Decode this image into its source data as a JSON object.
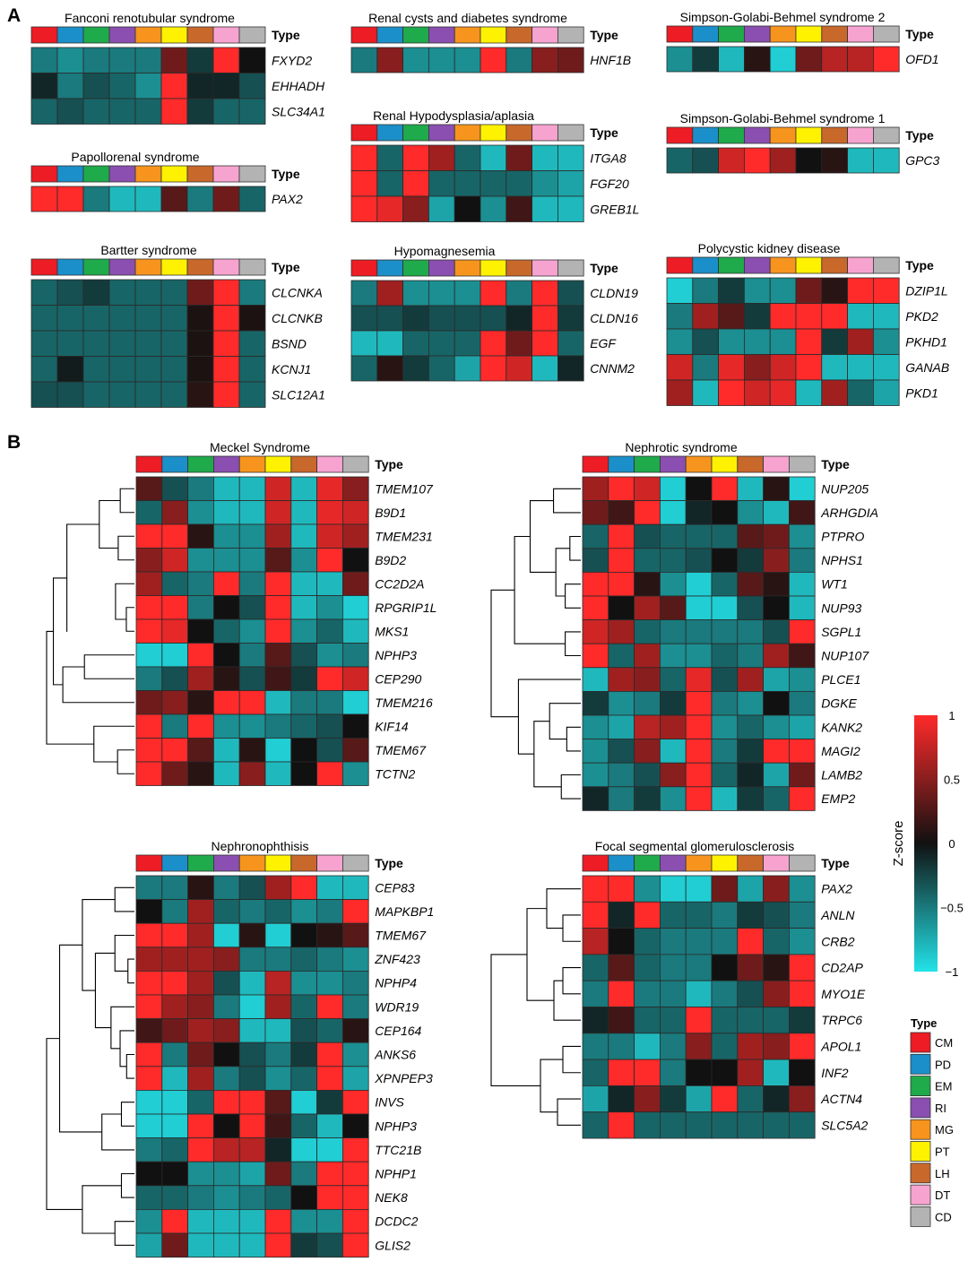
{
  "figure": {
    "panel_a_label": "A",
    "panel_b_label": "B",
    "type_label": "Type",
    "colorbar_title": "Z-score",
    "legend_title": "Type",
    "colormap": {
      "low": "#22e3e8",
      "mid": "#111111",
      "high": "#ff2a2a"
    }
  },
  "cell_types": [
    {
      "name": "CM",
      "color": "#ee1c24"
    },
    {
      "name": "PD",
      "color": "#1b8fc9"
    },
    {
      "name": "EM",
      "color": "#1faa4b"
    },
    {
      "name": "RI",
      "color": "#8a4fb0"
    },
    {
      "name": "MG",
      "color": "#f7941d"
    },
    {
      "name": "PT",
      "color": "#fff200"
    },
    {
      "name": "LH",
      "color": "#c9682b"
    },
    {
      "name": "DT",
      "color": "#f7a3d0"
    },
    {
      "name": "CD",
      "color": "#b3b3b3"
    }
  ],
  "chart_data": {
    "type": "heatmap",
    "value_range": [
      -1,
      1
    ],
    "colorbar_ticks": [
      1,
      0.5,
      0,
      -0.5,
      -1
    ],
    "colorbar_tick_labels": [
      "1",
      "0.5",
      "0",
      "−0.5",
      "−1"
    ],
    "columns": [
      "CM",
      "PD",
      "EM",
      "RI",
      "MG",
      "PT",
      "LH",
      "DT",
      "CD"
    ],
    "heatmaps": [
      {
        "id": "fanconi",
        "title": "Fanconi renotubular syndrome",
        "genes": [
          "FXYD2",
          "EHHADH",
          "SLC34A1"
        ],
        "values": [
          [
            -0.5,
            -0.6,
            -0.5,
            -0.5,
            -0.5,
            0.4,
            -0.2,
            1,
            0
          ],
          [
            -0.1,
            -0.5,
            -0.3,
            -0.4,
            -0.6,
            1,
            -0.1,
            -0.1,
            -0.3
          ],
          [
            -0.4,
            -0.3,
            -0.4,
            -0.4,
            -0.4,
            1,
            -0.2,
            -0.4,
            -0.4
          ]
        ]
      },
      {
        "id": "papillorenal",
        "title": "Papollorenal syndrome",
        "genes": [
          "PAX2"
        ],
        "values": [
          [
            1,
            1,
            -0.5,
            -0.8,
            -0.8,
            0.3,
            -0.5,
            0.4,
            -0.4
          ]
        ]
      },
      {
        "id": "bartter",
        "title": "Bartter syndrome",
        "genes": [
          "CLCNKA",
          "CLCNKB",
          "BSND",
          "KCNJ1",
          "SLC12A1"
        ],
        "values": [
          [
            -0.4,
            -0.3,
            -0.2,
            -0.4,
            -0.4,
            -0.4,
            0.4,
            1,
            -0.5
          ],
          [
            -0.4,
            -0.4,
            -0.4,
            -0.4,
            -0.4,
            -0.4,
            0.05,
            1,
            0.05
          ],
          [
            -0.4,
            -0.4,
            -0.4,
            -0.4,
            -0.4,
            -0.4,
            0.05,
            1,
            -0.4
          ],
          [
            -0.4,
            -0.05,
            -0.4,
            -0.4,
            -0.4,
            -0.4,
            0.05,
            1,
            -0.4
          ],
          [
            -0.3,
            -0.3,
            -0.4,
            -0.4,
            -0.4,
            -0.4,
            0.1,
            1,
            -0.4
          ]
        ]
      },
      {
        "id": "rcad",
        "title": "Renal cysts and diabetes syndrome",
        "genes": [
          "HNF1B"
        ],
        "values": [
          [
            -0.5,
            0.5,
            -0.6,
            -0.6,
            -0.6,
            1,
            -0.5,
            0.5,
            0.4
          ]
        ]
      },
      {
        "id": "hypodysplasia",
        "title": "Renal Hypodysplasia/aplasia",
        "genes": [
          "ITGA8",
          "FGF20",
          "GREB1L"
        ],
        "values": [
          [
            1,
            -0.4,
            1,
            0.6,
            -0.4,
            -0.8,
            0.4,
            -0.8,
            -0.8
          ],
          [
            1,
            -0.4,
            1,
            -0.4,
            -0.4,
            -0.4,
            -0.4,
            -0.6,
            -0.7
          ],
          [
            1,
            0.9,
            0.5,
            -0.7,
            0,
            -0.6,
            0.2,
            -0.8,
            -0.8
          ]
        ]
      },
      {
        "id": "hypomagnesemia",
        "title": "Hypomagnesemia",
        "genes": [
          "CLDN19",
          "CLDN16",
          "EGF",
          "CNNM2"
        ],
        "values": [
          [
            -0.5,
            0.6,
            -0.6,
            -0.6,
            -0.6,
            1,
            -0.5,
            1,
            -0.3
          ],
          [
            -0.3,
            -0.3,
            -0.2,
            -0.3,
            -0.3,
            -0.3,
            -0.1,
            1,
            -0.2
          ],
          [
            -0.8,
            -0.8,
            -0.4,
            -0.4,
            -0.4,
            1,
            0.4,
            1,
            -0.4
          ],
          [
            -0.4,
            0.1,
            -0.2,
            -0.4,
            -0.7,
            1,
            0.8,
            -0.8,
            -0.1
          ]
        ]
      },
      {
        "id": "sgbs2",
        "title": "Simpson-Golabi-Behmel syndrome 2",
        "genes": [
          "OFD1"
        ],
        "values": [
          [
            -0.6,
            -0.2,
            -0.8,
            0.1,
            -0.9,
            0.4,
            0.7,
            0.7,
            1
          ]
        ]
      },
      {
        "id": "sgbs1",
        "title": "Simpson-Golabi-Behmel syndrome 1",
        "genes": [
          "GPC3"
        ],
        "values": [
          [
            -0.4,
            -0.3,
            0.8,
            1,
            0.6,
            0,
            0.1,
            -0.8,
            -0.8
          ]
        ]
      },
      {
        "id": "pkd",
        "title": "Polycystic kidney disease",
        "genes": [
          "DZIP1L",
          "PKD2",
          "PKHD1",
          "GANAB",
          "PKD1"
        ],
        "values": [
          [
            -0.9,
            -0.5,
            -0.2,
            -0.6,
            -0.6,
            0.4,
            0.1,
            1,
            1
          ],
          [
            -0.5,
            0.6,
            0.3,
            -0.2,
            1,
            1,
            1,
            -0.8,
            -0.8
          ],
          [
            -0.6,
            -0.3,
            -0.6,
            -0.6,
            -0.6,
            1,
            -0.2,
            0.6,
            -0.6
          ],
          [
            0.8,
            -0.5,
            0.9,
            0.5,
            0.8,
            1,
            -0.8,
            -0.8,
            -0.8
          ],
          [
            0.6,
            -0.8,
            1,
            0.8,
            0.9,
            -0.8,
            0.6,
            -0.4,
            -0.7
          ]
        ]
      },
      {
        "id": "meckel",
        "title": "Meckel Syndrome",
        "genes": [
          "TMEM107",
          "B9D1",
          "TMEM231",
          "B9D2",
          "CC2D2A",
          "RPGRIP1L",
          "MKS1",
          "NPHP3",
          "CEP290",
          "TMEM216",
          "KIF14",
          "TMEM67",
          "TCTN2"
        ],
        "values": [
          [
            0.3,
            -0.3,
            -0.5,
            -0.8,
            -0.8,
            0.8,
            -0.8,
            0.9,
            0.5
          ],
          [
            -0.4,
            0.5,
            -0.6,
            -0.8,
            -0.8,
            0.8,
            -0.8,
            0.9,
            0.8
          ],
          [
            1,
            1,
            0.1,
            -0.6,
            -0.6,
            0.6,
            -0.8,
            0.8,
            0.6
          ],
          [
            0.5,
            0.8,
            -0.6,
            -0.6,
            -0.6,
            0.3,
            -0.6,
            1,
            0
          ],
          [
            0.6,
            -0.4,
            -0.5,
            1,
            -0.5,
            1,
            -0.8,
            -0.8,
            0.4
          ],
          [
            1,
            1,
            -0.5,
            0,
            -0.3,
            1,
            -0.8,
            -0.6,
            -0.9
          ],
          [
            1,
            0.9,
            0,
            -0.4,
            -0.6,
            1,
            -0.6,
            -0.4,
            -0.8
          ],
          [
            -0.9,
            -0.9,
            1,
            0,
            -0.5,
            0.3,
            -0.3,
            -0.6,
            -0.5
          ],
          [
            -0.5,
            -0.3,
            0.6,
            0.1,
            -0.3,
            0.2,
            -0.2,
            1,
            0.8
          ],
          [
            0.4,
            0.5,
            0.1,
            1,
            1,
            -0.8,
            -0.5,
            -0.5,
            -0.9
          ],
          [
            1,
            -0.5,
            1,
            -0.6,
            -0.6,
            -0.5,
            -0.4,
            -0.3,
            0
          ],
          [
            1,
            1,
            0.3,
            -0.8,
            0.1,
            -0.9,
            0,
            -0.3,
            0.3
          ],
          [
            1,
            0.4,
            0.1,
            -0.8,
            0.5,
            -0.8,
            0,
            1,
            -0.6
          ]
        ]
      },
      {
        "id": "nephrotic",
        "title": "Nephrotic syndrome",
        "genes": [
          "NUP205",
          "ARHGDIA",
          "PTPRO",
          "NPHS1",
          "WT1",
          "NUP93",
          "SGPL1",
          "NUP107",
          "PLCE1",
          "DGKE",
          "KANK2",
          "MAGI2",
          "LAMB2",
          "EMP2"
        ],
        "values": [
          [
            0.6,
            1,
            0.8,
            -0.9,
            0,
            1,
            -0.8,
            0.1,
            -0.9
          ],
          [
            0.4,
            0.2,
            1,
            -0.9,
            -0.1,
            0,
            -0.6,
            -0.8,
            0.2
          ],
          [
            -0.4,
            1,
            -0.3,
            -0.4,
            -0.4,
            -0.4,
            0.3,
            0.4,
            -0.6
          ],
          [
            -0.3,
            1,
            -0.4,
            -0.4,
            -0.3,
            0,
            -0.2,
            0.5,
            -0.5
          ],
          [
            1,
            1,
            0.1,
            -0.6,
            -0.9,
            -0.4,
            0.3,
            0.1,
            -0.8
          ],
          [
            1,
            0,
            0.6,
            0.3,
            -0.9,
            -0.9,
            -0.3,
            0,
            -0.8
          ],
          [
            0.8,
            0.6,
            -0.4,
            -0.5,
            -0.5,
            -0.5,
            -0.5,
            -0.3,
            1
          ],
          [
            1,
            -0.4,
            0.6,
            -0.6,
            -0.6,
            -0.4,
            -0.5,
            0.6,
            0.2
          ],
          [
            -0.8,
            0.6,
            0.5,
            -0.4,
            0.9,
            -0.3,
            0.6,
            -0.7,
            -0.6
          ],
          [
            -0.2,
            -0.6,
            -0.5,
            -0.2,
            1,
            -0.5,
            -0.6,
            0,
            -0.5
          ],
          [
            -0.6,
            -0.7,
            0.7,
            0.6,
            1,
            -0.6,
            -0.4,
            -0.6,
            -0.7
          ],
          [
            -0.6,
            -0.3,
            0.5,
            -0.8,
            1,
            -0.5,
            -0.2,
            1,
            1
          ],
          [
            -0.6,
            -0.5,
            -0.3,
            0.5,
            1,
            -0.4,
            -0.1,
            -0.7,
            0.4
          ],
          [
            -0.1,
            -0.5,
            -0.2,
            -0.6,
            1,
            -0.8,
            -0.2,
            -0.4,
            1
          ]
        ]
      },
      {
        "id": "nephronophthisis",
        "title": "Nephronophthisis",
        "genes": [
          "CEP83",
          "MAPKBP1",
          "TMEM67",
          "ZNF423",
          "NPHP4",
          "WDR19",
          "CEP164",
          "ANKS6",
          "XPNPEP3",
          "INVS",
          "NPHP3",
          "TTC21B",
          "NPHP1",
          "NEK8",
          "DCDC2",
          "GLIS2"
        ],
        "values": [
          [
            -0.5,
            -0.5,
            0.1,
            -0.5,
            -0.3,
            0.6,
            1,
            -0.8,
            -0.8
          ],
          [
            0,
            -0.5,
            0.6,
            -0.4,
            -0.5,
            -0.4,
            -0.6,
            -0.5,
            1
          ],
          [
            1,
            1,
            0.6,
            -0.9,
            0.1,
            -0.9,
            0,
            0.1,
            0.3
          ],
          [
            0.6,
            0.6,
            0.6,
            0.5,
            -0.5,
            -0.5,
            -0.4,
            -0.5,
            -0.6
          ],
          [
            1,
            1,
            0.6,
            -0.3,
            -0.8,
            0.7,
            -0.6,
            -0.6,
            -0.5
          ],
          [
            1,
            0.6,
            0.5,
            -0.5,
            -0.9,
            0.6,
            -0.4,
            1,
            -0.5
          ],
          [
            0.2,
            0.4,
            0.6,
            0.5,
            -0.8,
            -0.8,
            -0.3,
            -0.4,
            0.1
          ],
          [
            1,
            -0.5,
            0.4,
            0,
            -0.3,
            -0.5,
            -0.2,
            1,
            -0.6
          ],
          [
            1,
            -0.8,
            0.6,
            -0.5,
            -0.3,
            -0.6,
            -0.4,
            1,
            -0.7
          ],
          [
            -0.9,
            -0.9,
            -0.4,
            1,
            1,
            0.3,
            -0.9,
            -0.2,
            1
          ],
          [
            -0.9,
            -0.9,
            1,
            0,
            1,
            0.2,
            -0.4,
            -0.8,
            0
          ],
          [
            -0.5,
            -0.4,
            1,
            0.7,
            0.7,
            -0.1,
            -0.9,
            -0.9,
            1
          ],
          [
            0,
            0,
            -0.6,
            -0.6,
            -0.7,
            0.4,
            -0.5,
            1,
            1
          ],
          [
            -0.4,
            -0.4,
            -0.5,
            -0.6,
            -0.5,
            -0.4,
            0,
            1,
            1
          ],
          [
            -0.6,
            1,
            -0.8,
            -0.8,
            -0.8,
            1,
            -0.6,
            -0.6,
            1
          ],
          [
            -0.7,
            0.4,
            -0.8,
            -0.8,
            -0.8,
            1,
            -0.2,
            -0.3,
            1
          ]
        ]
      },
      {
        "id": "fsgs",
        "title": "Focal segmental glomerulosclerosis",
        "genes": [
          "PAX2",
          "ANLN",
          "CRB2",
          "CD2AP",
          "MYO1E",
          "TRPC6",
          "APOL1",
          "INF2",
          "ACTN4",
          "SLC5A2"
        ],
        "values": [
          [
            1,
            1,
            -0.6,
            -0.9,
            -0.9,
            0.4,
            -0.7,
            0.5,
            -0.6
          ],
          [
            1,
            -0.1,
            1,
            -0.4,
            -0.4,
            -0.5,
            -0.2,
            -0.3,
            -0.5
          ],
          [
            0.7,
            0,
            -0.4,
            -0.5,
            -0.5,
            -0.5,
            1,
            -0.4,
            -0.6
          ],
          [
            -0.4,
            0.3,
            -0.4,
            -0.5,
            -0.5,
            0,
            0.4,
            0.1,
            1
          ],
          [
            -0.5,
            1,
            -0.5,
            -0.5,
            -0.8,
            -0.5,
            -0.3,
            0.5,
            1
          ],
          [
            -0.1,
            0.2,
            -0.4,
            -0.4,
            1,
            -0.4,
            -0.4,
            -0.4,
            -0.2
          ],
          [
            -0.5,
            -0.5,
            -0.8,
            -0.5,
            0.5,
            -0.4,
            0.6,
            0.5,
            1
          ],
          [
            -0.4,
            1,
            1,
            -0.5,
            0,
            0,
            0.6,
            -0.8,
            0
          ],
          [
            -0.7,
            -0.1,
            0.5,
            -0.2,
            -0.7,
            1,
            -0.4,
            -0.1,
            0.5
          ],
          [
            -0.4,
            1,
            -0.4,
            -0.4,
            -0.4,
            -0.4,
            -0.4,
            -0.4,
            -0.4
          ]
        ]
      }
    ]
  }
}
